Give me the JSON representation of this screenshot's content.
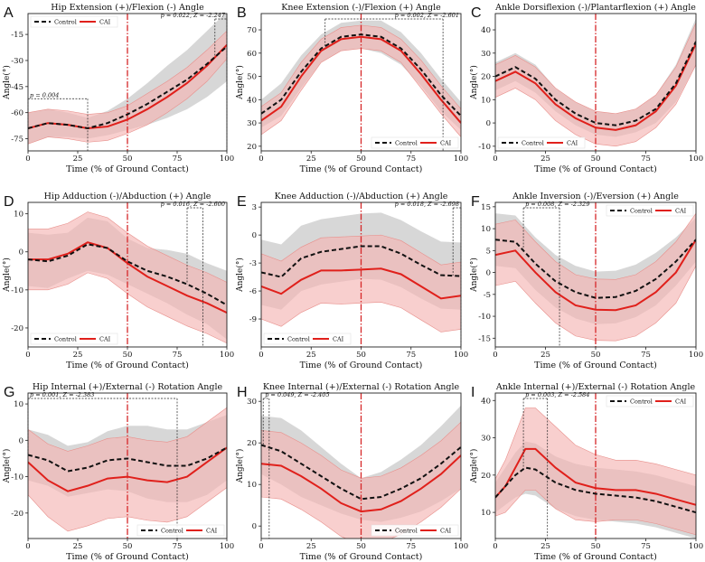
{
  "figure": {
    "legend_control": "Control",
    "legend_cai": "CAI",
    "xlabel": "Time (% of Ground Contact)",
    "ylabel": "Angle(°)",
    "colors": {
      "control_line": "#111111",
      "cai_line": "#e0201b",
      "control_band": "#d3d3d3",
      "cai_band": "#f4b6b3",
      "midline": "#d62728"
    }
  },
  "chart_data": [
    {
      "id": "A",
      "type": "line",
      "title": "Hip Extension (+)/Flexion (-) Angle",
      "xlabel": "Time (% of Ground Contact)",
      "ylabel": "Angle(°)",
      "xlim": [
        0,
        100
      ],
      "ylim": [
        -82,
        -3
      ],
      "xticks": [
        0,
        25,
        50,
        75,
        100
      ],
      "yticks": [
        -75,
        -60,
        -45,
        -30,
        -15
      ],
      "legend_position": "top-left",
      "x": [
        0,
        10,
        20,
        30,
        40,
        50,
        60,
        70,
        80,
        90,
        100
      ],
      "series": [
        {
          "name": "Control",
          "values": [
            -69,
            -66,
            -67,
            -69,
            -66,
            -61,
            -55,
            -48,
            -41,
            -32,
            -22
          ],
          "sd": [
            9,
            8,
            7,
            6,
            7,
            9,
            12,
            15,
            17,
            19,
            20
          ]
        },
        {
          "name": "CAI",
          "values": [
            -69,
            -66,
            -67,
            -69,
            -68,
            -64,
            -58,
            -51,
            -43,
            -33,
            -21
          ],
          "sd": [
            9,
            8,
            8,
            8,
            8,
            8,
            9,
            9,
            9,
            9,
            8
          ]
        }
      ],
      "annotations": [
        {
          "text": "p = 0.004",
          "x0": 0,
          "x1": 30
        },
        {
          "text": "p = 0.022, Z = -2.247",
          "x0": 94,
          "x1": 100
        }
      ]
    },
    {
      "id": "B",
      "type": "line",
      "title": "Knee Extension (-)/Flexion (+) Angle",
      "xlabel": "Time (% of Ground Contact)",
      "ylabel": "Angle(°)",
      "xlim": [
        0,
        100
      ],
      "ylim": [
        18,
        77
      ],
      "xticks": [
        0,
        25,
        50,
        75,
        100
      ],
      "yticks": [
        20,
        30,
        40,
        50,
        60,
        70
      ],
      "legend_position": "bottom-right",
      "x": [
        0,
        10,
        20,
        30,
        40,
        50,
        60,
        70,
        80,
        90,
        100
      ],
      "series": [
        {
          "name": "Control",
          "values": [
            34,
            40,
            52,
            62,
            67,
            68,
            67,
            62,
            53,
            42,
            33
          ],
          "sd": [
            6,
            7,
            7,
            6,
            6,
            6,
            7,
            7,
            7,
            7,
            6
          ]
        },
        {
          "name": "CAI",
          "values": [
            31,
            37,
            50,
            61,
            66,
            67,
            66,
            61,
            51,
            40,
            30
          ],
          "sd": [
            6,
            6,
            6,
            5,
            5,
            5,
            5,
            5,
            6,
            6,
            6
          ]
        }
      ],
      "annotations": [
        {
          "text": "p = 0.002, Z = -2.601",
          "x0": 32,
          "x1": 91
        }
      ]
    },
    {
      "id": "C",
      "type": "line",
      "title": "Ankle Dorsiflexion (-)/Plantarflexion (+) Angle",
      "xlabel": "Time (% of Ground Contact)",
      "ylabel": "Angle(°)",
      "xlim": [
        0,
        100
      ],
      "ylim": [
        -12,
        47
      ],
      "xticks": [
        0,
        25,
        50,
        75,
        100
      ],
      "yticks": [
        -10,
        0,
        10,
        20,
        30,
        40
      ],
      "legend_position": "bottom-left",
      "x": [
        0,
        10,
        20,
        30,
        40,
        50,
        60,
        70,
        80,
        90,
        100
      ],
      "series": [
        {
          "name": "Control",
          "values": [
            20,
            24,
            19,
            10,
            4,
            0,
            -1,
            1,
            6,
            17,
            35
          ],
          "sd": [
            6,
            6,
            6,
            5,
            5,
            5,
            5,
            5,
            6,
            8,
            10
          ]
        },
        {
          "name": "CAI",
          "values": [
            18,
            22,
            17,
            8,
            2,
            -2,
            -3,
            -1,
            5,
            16,
            34
          ],
          "sd": [
            7,
            7,
            7,
            7,
            7,
            7,
            7,
            7,
            7,
            8,
            9
          ]
        }
      ],
      "annotations": []
    },
    {
      "id": "D",
      "type": "line",
      "title": "Hip Adduction (-)/Abduction (+) Angle",
      "xlabel": "Time (% of Ground Contact)",
      "ylabel": "Angle(°)",
      "xlim": [
        0,
        100
      ],
      "ylim": [
        -25,
        13
      ],
      "xticks": [
        0,
        25,
        50,
        75,
        100
      ],
      "yticks": [
        -20,
        -10,
        0,
        10
      ],
      "legend_position": "bottom-left",
      "x": [
        0,
        10,
        20,
        30,
        40,
        50,
        60,
        70,
        80,
        90,
        100
      ],
      "series": [
        {
          "name": "Control",
          "values": [
            -2,
            -2.5,
            -1,
            2,
            1,
            -2.5,
            -5,
            -6.5,
            -8.5,
            -11,
            -14
          ],
          "sd": [
            7,
            7,
            6,
            7,
            7,
            6,
            6,
            7,
            8,
            8,
            9
          ]
        },
        {
          "name": "CAI",
          "values": [
            -2,
            -2,
            -0.5,
            2.5,
            1,
            -3,
            -6.5,
            -9,
            -11.5,
            -13.5,
            -16
          ],
          "sd": [
            8,
            8,
            8,
            8,
            8,
            8,
            8,
            8,
            8,
            8,
            8
          ]
        }
      ],
      "annotations": [
        {
          "text": "p = 0.016, Z = -2.600",
          "x0": 80,
          "x1": 88
        }
      ]
    },
    {
      "id": "E",
      "type": "line",
      "title": "Knee Adduction (-)/Abduction (+) Angle",
      "xlabel": "Time (% of Ground Contact)",
      "ylabel": "Angle(°)",
      "xlim": [
        0,
        100
      ],
      "ylim": [
        -12,
        3.5
      ],
      "xticks": [
        0,
        25,
        50,
        75,
        100
      ],
      "yticks": [
        -9,
        -6,
        -3,
        0,
        3
      ],
      "legend_position": "bottom-left",
      "x": [
        0,
        10,
        20,
        30,
        40,
        50,
        60,
        70,
        80,
        90,
        100
      ],
      "series": [
        {
          "name": "Control",
          "values": [
            -4,
            -4.5,
            -2.5,
            -1.8,
            -1.5,
            -1.2,
            -1.2,
            -2,
            -3.2,
            -4.3,
            -4.4
          ],
          "sd": [
            3.5,
            3.5,
            3.5,
            3.5,
            3.5,
            3.5,
            3.6,
            3.6,
            3.6,
            3.6,
            3.6
          ]
        },
        {
          "name": "CAI",
          "values": [
            -5.5,
            -6.3,
            -4.8,
            -3.8,
            -3.8,
            -3.7,
            -3.6,
            -4.2,
            -5.5,
            -6.8,
            -6.5
          ],
          "sd": [
            3.5,
            3.5,
            3.5,
            3.5,
            3.6,
            3.6,
            3.6,
            3.6,
            3.6,
            3.6,
            3.6
          ]
        }
      ],
      "annotations": [
        {
          "text": "p = 0.018, Z = -2.698",
          "x0": 96,
          "x1": 100
        }
      ]
    },
    {
      "id": "F",
      "type": "line",
      "title": "Ankle Inversion (-)/Eversion (+) Angle",
      "xlabel": "Time (% of Ground Contact)",
      "ylabel": "Angle(°)",
      "xlim": [
        0,
        100
      ],
      "ylim": [
        -17,
        16
      ],
      "xticks": [
        0,
        25,
        50,
        75,
        100
      ],
      "yticks": [
        -15,
        -10,
        -5,
        0,
        5,
        10,
        15
      ],
      "legend_position": "top-right",
      "x": [
        0,
        10,
        20,
        30,
        40,
        50,
        60,
        70,
        80,
        90,
        100
      ],
      "series": [
        {
          "name": "Control",
          "values": [
            7.5,
            7,
            2,
            -2,
            -4.5,
            -5.8,
            -5.6,
            -4.2,
            -1.5,
            2.5,
            7.5
          ],
          "sd": [
            6,
            6,
            6,
            6,
            6,
            6,
            6,
            6,
            6,
            5.5,
            5
          ]
        },
        {
          "name": "CAI",
          "values": [
            4,
            5,
            0,
            -4.5,
            -7.5,
            -8.5,
            -8.6,
            -7.5,
            -4.5,
            0,
            7.5
          ],
          "sd": [
            7,
            7,
            7,
            7,
            7,
            7,
            7,
            7,
            7,
            7,
            6
          ]
        }
      ],
      "annotations": [
        {
          "text": "p = 0.008, Z = -2.329",
          "x0": 14,
          "x1": 32
        }
      ]
    },
    {
      "id": "G",
      "type": "line",
      "title": "Hip Internal (+)/External (-) Rotation Angle",
      "xlabel": "Time (% of Ground Contact)",
      "ylabel": "Angle(°)",
      "xlim": [
        0,
        100
      ],
      "ylim": [
        -27,
        13
      ],
      "xticks": [
        0,
        25,
        50,
        75,
        100
      ],
      "yticks": [
        -20,
        -10,
        0,
        10
      ],
      "legend_position": "bottom-right",
      "x": [
        0,
        10,
        20,
        30,
        40,
        50,
        60,
        70,
        80,
        90,
        100
      ],
      "series": [
        {
          "name": "Control",
          "values": [
            -4,
            -5.5,
            -8.5,
            -7.5,
            -5.5,
            -5,
            -6,
            -7,
            -7,
            -5,
            -2
          ],
          "sd": [
            7,
            7,
            7,
            7,
            8,
            9,
            10,
            10,
            10,
            10,
            9
          ]
        },
        {
          "name": "CAI",
          "values": [
            -6,
            -11,
            -14,
            -12.5,
            -10.5,
            -10,
            -11,
            -11.5,
            -10,
            -6,
            -2
          ],
          "sd": [
            9,
            10,
            11,
            11,
            11,
            11,
            11,
            11,
            11,
            11,
            11
          ]
        }
      ],
      "annotations": [
        {
          "text": "p = 0.001, Z = -2.383",
          "x0": 0,
          "x1": 75
        }
      ]
    },
    {
      "id": "H",
      "type": "line",
      "title": "Knee Internal (+)/External (-) Rotation Angle",
      "xlabel": "Time (% of Ground Contact)",
      "ylabel": "Angle(°)",
      "xlim": [
        0,
        100
      ],
      "ylim": [
        -3,
        32
      ],
      "xticks": [
        0,
        25,
        50,
        75,
        100
      ],
      "yticks": [
        0,
        10,
        20,
        30
      ],
      "legend_position": "bottom-right",
      "x": [
        0,
        10,
        20,
        30,
        40,
        50,
        60,
        70,
        80,
        90,
        100
      ],
      "series": [
        {
          "name": "Control",
          "values": [
            19.5,
            18,
            15,
            12,
            9,
            6.5,
            7,
            9,
            11.5,
            15,
            19
          ],
          "sd": [
            7,
            8,
            8,
            7,
            6,
            5,
            6,
            7,
            8,
            9,
            10
          ]
        },
        {
          "name": "CAI",
          "values": [
            15,
            14.5,
            12,
            9,
            5.5,
            3.5,
            4,
            6,
            9,
            12.5,
            17
          ],
          "sd": [
            8,
            8,
            8,
            8,
            8,
            8,
            8,
            8,
            8,
            8,
            8
          ]
        }
      ],
      "annotations": [
        {
          "text": "p = 0.049, Z = -2.405",
          "x0": 1,
          "x1": 4
        }
      ]
    },
    {
      "id": "I",
      "type": "line",
      "title": "Ankle Internal (+)/External (-) Rotation Angle",
      "xlabel": "Time (% of Ground Contact)",
      "ylabel": "Angle(°)",
      "xlim": [
        0,
        100
      ],
      "ylim": [
        3,
        42
      ],
      "xticks": [
        0,
        25,
        50,
        75,
        100
      ],
      "yticks": [
        10,
        20,
        30,
        40
      ],
      "legend_position": "top-right",
      "x": [
        0,
        5,
        10,
        15,
        20,
        30,
        40,
        50,
        60,
        70,
        80,
        90,
        100
      ],
      "series": [
        {
          "name": "Control",
          "values": [
            14,
            17,
            20,
            22,
            21.5,
            18,
            16,
            15,
            14.5,
            14,
            13,
            11.5,
            10
          ],
          "sd": [
            4,
            5,
            6,
            7,
            7,
            7,
            7,
            7,
            7,
            7,
            7,
            7,
            7
          ]
        },
        {
          "name": "CAI",
          "values": [
            14,
            17,
            22,
            27,
            27,
            22,
            18,
            16.5,
            16,
            16,
            15,
            13.5,
            12
          ],
          "sd": [
            5,
            7,
            9,
            11,
            11,
            11,
            10,
            9,
            8,
            8,
            8,
            8,
            8
          ]
        }
      ],
      "annotations": [
        {
          "text": "p = 0.003, Z = -2.584",
          "x0": 14,
          "x1": 26
        }
      ]
    }
  ]
}
